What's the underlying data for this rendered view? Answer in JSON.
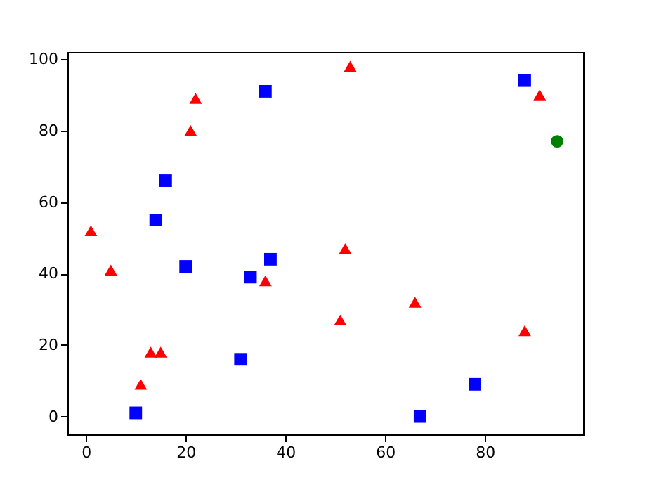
{
  "chart_data": {
    "type": "scatter",
    "xlim": [
      -3.7,
      99.7
    ],
    "ylim": [
      -5,
      102
    ],
    "xticks": [
      0,
      20,
      40,
      60,
      80
    ],
    "yticks": [
      0,
      20,
      40,
      60,
      80,
      100
    ],
    "grid": false,
    "series": [
      {
        "color": "#ff0000",
        "marker": "triangle",
        "x": [
          1,
          5,
          11,
          13,
          15,
          21,
          22,
          36,
          51,
          52,
          53,
          66,
          88,
          91
        ],
        "values": [
          52,
          41,
          9,
          18,
          18,
          80,
          89,
          38,
          27,
          47,
          98,
          32,
          24,
          90
        ]
      },
      {
        "color": "#0000ff",
        "marker": "square",
        "x": [
          10,
          14,
          16,
          20,
          31,
          33,
          36,
          37,
          67,
          78,
          88
        ],
        "values": [
          1,
          55,
          66,
          42,
          16,
          39,
          91,
          44,
          0,
          9,
          94
        ]
      },
      {
        "color": "#008000",
        "marker": "circle",
        "x": [
          94.5
        ],
        "values": [
          77
        ]
      }
    ]
  }
}
